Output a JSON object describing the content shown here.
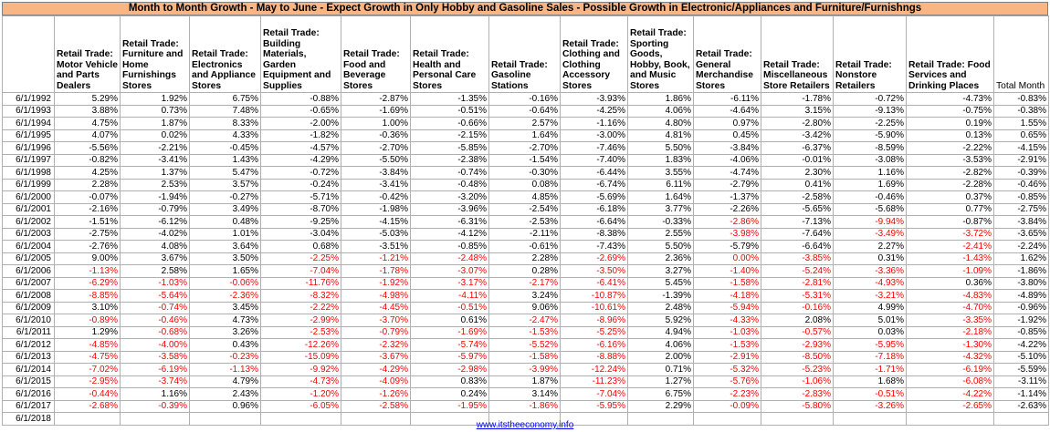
{
  "title": "Month to Month Growth - May to June - Expect Growth in Only Hobby and Gasoline Sales - Possible Growth in Electronic/Appliances  and Furniture/Furnishngs",
  "footer_link": "www.itstheeconomy.info",
  "colors": {
    "title_bg": "#f9b583",
    "negative_highlight": "#ff0000",
    "link": "#0000ee"
  },
  "chart_data": {
    "type": "table",
    "columns": [
      "",
      "Retail Trade: Motor Vehicle and Parts Dealers",
      "Retail Trade: Furniture and Home Furnishings Stores",
      "Retail Trade: Electronics and Appliance Stores",
      "Retail Trade: Building Materials, Garden Equipment and Supplies",
      "Retail Trade: Food and Beverage Stores",
      "Retail Trade: Health and Personal Care Stores",
      "Retail Trade: Gasoline Stations",
      "Retail Trade: Clothing and Clothing Accessory Stores",
      "Retail Trade: Sporting Goods, Hobby, Book, and Music Stores",
      "Retail Trade: General Merchandise Stores",
      "Retail Trade: Miscellaneous Store Retailers",
      "Retail Trade: Nonstore Retailers",
      "Retail Trade: Food Services and Drinking Places",
      "Total Month"
    ],
    "rows": [
      {
        "date": "6/1/1992",
        "values": [
          "5.29%",
          "1.92%",
          "6.75%",
          "-0.88%",
          "-2.87%",
          "-1.35%",
          "-0.16%",
          "-3.93%",
          "1.86%",
          "-6.11%",
          "-1.78%",
          "-0.72%",
          "-4.73%",
          "-0.83%"
        ],
        "red": []
      },
      {
        "date": "6/1/1993",
        "values": [
          "3.88%",
          "0.73%",
          "7.48%",
          "-0.65%",
          "-1.69%",
          "-0.51%",
          "-0.64%",
          "-4.25%",
          "4.06%",
          "-4.64%",
          "3.15%",
          "-9.13%",
          "-0.75%",
          "-0.38%"
        ],
        "red": []
      },
      {
        "date": "6/1/1994",
        "values": [
          "4.75%",
          "1.87%",
          "8.33%",
          "-2.00%",
          "1.00%",
          "-0.66%",
          "2.57%",
          "-1.16%",
          "4.80%",
          "0.97%",
          "-2.80%",
          "-2.25%",
          "0.19%",
          "1.55%"
        ],
        "red": []
      },
      {
        "date": "6/1/1995",
        "values": [
          "4.07%",
          "0.02%",
          "4.33%",
          "-1.82%",
          "-0.36%",
          "-2.15%",
          "1.64%",
          "-3.00%",
          "4.81%",
          "0.45%",
          "-3.42%",
          "-5.90%",
          "0.13%",
          "0.65%"
        ],
        "red": []
      },
      {
        "date": "6/1/1996",
        "values": [
          "-5.56%",
          "-2.21%",
          "-0.45%",
          "-4.57%",
          "-2.70%",
          "-5.85%",
          "-2.70%",
          "-7.46%",
          "5.50%",
          "-3.84%",
          "-6.37%",
          "-8.59%",
          "-2.22%",
          "-4.15%"
        ],
        "red": []
      },
      {
        "date": "6/1/1997",
        "values": [
          "-0.82%",
          "-3.41%",
          "1.43%",
          "-4.29%",
          "-5.50%",
          "-2.38%",
          "-1.54%",
          "-7.40%",
          "1.83%",
          "-4.06%",
          "-0.01%",
          "-3.08%",
          "-3.53%",
          "-2.91%"
        ],
        "red": []
      },
      {
        "date": "6/1/1998",
        "values": [
          "4.25%",
          "1.37%",
          "5.47%",
          "-0.72%",
          "-3.84%",
          "-0.74%",
          "-0.30%",
          "-6.44%",
          "3.55%",
          "-4.74%",
          "2.30%",
          "1.16%",
          "-2.82%",
          "-0.39%"
        ],
        "red": []
      },
      {
        "date": "6/1/1999",
        "values": [
          "2.28%",
          "2.53%",
          "3.57%",
          "-0.24%",
          "-3.41%",
          "-0.48%",
          "0.08%",
          "-6.74%",
          "6.11%",
          "-2.79%",
          "0.41%",
          "1.69%",
          "-2.28%",
          "-0.46%"
        ],
        "red": []
      },
      {
        "date": "6/1/2000",
        "values": [
          "-0.07%",
          "-1.94%",
          "-0.27%",
          "-5.71%",
          "-0.42%",
          "-3.20%",
          "4.85%",
          "-5.69%",
          "1.64%",
          "-1.37%",
          "-2.58%",
          "-0.46%",
          "0.37%",
          "-0.85%"
        ],
        "red": []
      },
      {
        "date": "6/1/2001",
        "values": [
          "-2.16%",
          "-0.79%",
          "3.49%",
          "-8.70%",
          "-1.98%",
          "-3.96%",
          "-2.54%",
          "-6.18%",
          "3.77%",
          "-2.26%",
          "-5.65%",
          "-5.68%",
          "0.77%",
          "-2.75%"
        ],
        "red": []
      },
      {
        "date": "6/1/2002",
        "values": [
          "-1.51%",
          "-6.12%",
          "0.48%",
          "-9.25%",
          "-4.15%",
          "-6.31%",
          "-2.53%",
          "-6.64%",
          "-0.33%",
          "-2.86%",
          "-7.13%",
          "-9.94%",
          "-0.87%",
          "-3.84%"
        ],
        "red": [
          9,
          11
        ]
      },
      {
        "date": "6/1/2003",
        "values": [
          "-2.75%",
          "-4.02%",
          "1.01%",
          "-3.04%",
          "-5.03%",
          "-4.12%",
          "-2.11%",
          "-8.38%",
          "2.55%",
          "-3.98%",
          "-7.64%",
          "-3.49%",
          "-3.72%",
          "-3.65%"
        ],
        "red": [
          9,
          11,
          12
        ]
      },
      {
        "date": "6/1/2004",
        "values": [
          "-2.76%",
          "4.08%",
          "3.64%",
          "0.68%",
          "-3.51%",
          "-0.85%",
          "-0.61%",
          "-7.43%",
          "5.50%",
          "-5.79%",
          "-6.64%",
          "2.27%",
          "-2.41%",
          "-2.24%"
        ],
        "red": [
          12
        ]
      },
      {
        "date": "6/1/2005",
        "values": [
          "9.00%",
          "3.67%",
          "3.50%",
          "-2.25%",
          "-1.21%",
          "-2.48%",
          "2.28%",
          "-2.69%",
          "2.36%",
          "0.00%",
          "-3.85%",
          "0.31%",
          "-1.43%",
          "1.62%"
        ],
        "red": [
          3,
          4,
          5,
          7,
          9,
          10,
          12
        ]
      },
      {
        "date": "6/1/2006",
        "values": [
          "-1.13%",
          "2.58%",
          "1.65%",
          "-7.04%",
          "-1.78%",
          "-3.07%",
          "0.28%",
          "-3.50%",
          "3.27%",
          "-1.40%",
          "-5.24%",
          "-3.36%",
          "-1.09%",
          "-1.86%"
        ],
        "red": [
          0,
          3,
          4,
          5,
          7,
          9,
          10,
          11,
          12
        ]
      },
      {
        "date": "6/1/2007",
        "values": [
          "-6.29%",
          "-1.03%",
          "-0.06%",
          "-11.76%",
          "-1.92%",
          "-3.17%",
          "-2.17%",
          "-6.41%",
          "5.45%",
          "-1.58%",
          "-2.81%",
          "-4.93%",
          "0.36%",
          "-3.80%"
        ],
        "red": [
          0,
          1,
          2,
          3,
          4,
          5,
          6,
          7,
          9,
          10,
          11
        ]
      },
      {
        "date": "6/1/2008",
        "values": [
          "-8.85%",
          "-5.64%",
          "-2.36%",
          "-8.32%",
          "-4.98%",
          "-4.11%",
          "3.24%",
          "-10.87%",
          "-1.39%",
          "-4.18%",
          "-5.31%",
          "-3.21%",
          "-4.83%",
          "-4.89%"
        ],
        "red": [
          0,
          1,
          2,
          3,
          4,
          5,
          7,
          9,
          10,
          11,
          12
        ]
      },
      {
        "date": "6/1/2009",
        "values": [
          "3.10%",
          "-0.74%",
          "3.45%",
          "-2.22%",
          "-4.45%",
          "-0.51%",
          "9.06%",
          "-10.61%",
          "2.48%",
          "-5.94%",
          "-0.16%",
          "4.99%",
          "-4.70%",
          "-0.96%"
        ],
        "red": [
          1,
          3,
          4,
          5,
          7,
          9,
          10,
          12
        ]
      },
      {
        "date": "6/1/2010",
        "values": [
          "-0.89%",
          "-0.46%",
          "4.73%",
          "-2.99%",
          "-3.70%",
          "0.61%",
          "-2.47%",
          "-8.96%",
          "5.92%",
          "-4.33%",
          "2.08%",
          "5.01%",
          "-3.35%",
          "-1.92%"
        ],
        "red": [
          0,
          1,
          3,
          4,
          6,
          7,
          9,
          12
        ]
      },
      {
        "date": "6/1/2011",
        "values": [
          "1.29%",
          "-0.68%",
          "3.26%",
          "-2.53%",
          "-0.79%",
          "-1.69%",
          "-1.53%",
          "-5.25%",
          "4.94%",
          "-1.03%",
          "-0.57%",
          "0.03%",
          "-2.18%",
          "-0.85%"
        ],
        "red": [
          1,
          3,
          4,
          5,
          6,
          7,
          9,
          10,
          12
        ]
      },
      {
        "date": "6/1/2012",
        "values": [
          "-4.85%",
          "-4.00%",
          "0.43%",
          "-12.26%",
          "-2.32%",
          "-5.74%",
          "-5.52%",
          "-6.16%",
          "4.06%",
          "-1.53%",
          "-2.93%",
          "-5.95%",
          "-1.30%",
          "-4.22%"
        ],
        "red": [
          0,
          1,
          3,
          4,
          5,
          6,
          7,
          9,
          10,
          11,
          12
        ]
      },
      {
        "date": "6/1/2013",
        "values": [
          "-4.75%",
          "-3.58%",
          "-0.23%",
          "-15.09%",
          "-3.67%",
          "-5.97%",
          "-1.58%",
          "-8.88%",
          "2.00%",
          "-2.91%",
          "-8.50%",
          "-7.18%",
          "-4.32%",
          "-5.10%"
        ],
        "red": [
          0,
          1,
          2,
          3,
          4,
          5,
          6,
          7,
          9,
          10,
          11,
          12
        ]
      },
      {
        "date": "6/1/2014",
        "values": [
          "-7.02%",
          "-6.19%",
          "-1.13%",
          "-9.92%",
          "-4.29%",
          "-2.98%",
          "-3.99%",
          "-12.24%",
          "0.71%",
          "-5.32%",
          "-5.23%",
          "-1.71%",
          "-6.19%",
          "-5.59%"
        ],
        "red": [
          0,
          1,
          2,
          3,
          4,
          5,
          6,
          7,
          9,
          10,
          11,
          12
        ]
      },
      {
        "date": "6/1/2015",
        "values": [
          "-2.95%",
          "-3.74%",
          "4.79%",
          "-4.73%",
          "-4.09%",
          "0.83%",
          "1.87%",
          "-11.23%",
          "1.27%",
          "-5.76%",
          "-1.06%",
          "1.68%",
          "-6.08%",
          "-3.11%"
        ],
        "red": [
          0,
          1,
          3,
          4,
          7,
          9,
          10,
          12
        ]
      },
      {
        "date": "6/1/2016",
        "values": [
          "-0.44%",
          "1.16%",
          "2.43%",
          "-1.20%",
          "-1.26%",
          "0.24%",
          "3.14%",
          "-7.04%",
          "6.75%",
          "-2.23%",
          "-2.83%",
          "-0.51%",
          "-4.22%",
          "-1.14%"
        ],
        "red": [
          0,
          3,
          4,
          7,
          9,
          10,
          11,
          12
        ]
      },
      {
        "date": "6/1/2017",
        "values": [
          "-2.68%",
          "-0.39%",
          "0.96%",
          "-6.05%",
          "-2.58%",
          "-1.95%",
          "-1.86%",
          "-5.95%",
          "2.29%",
          "-0.09%",
          "-5.80%",
          "-3.26%",
          "-2.65%",
          "-2.63%"
        ],
        "red": [
          0,
          1,
          3,
          4,
          5,
          6,
          7,
          9,
          10,
          11,
          12
        ]
      },
      {
        "date": "6/1/2018",
        "values": [
          "",
          "",
          "",
          "",
          "",
          "",
          "",
          "",
          "",
          "",
          "",
          "",
          "",
          ""
        ],
        "red": []
      }
    ]
  }
}
